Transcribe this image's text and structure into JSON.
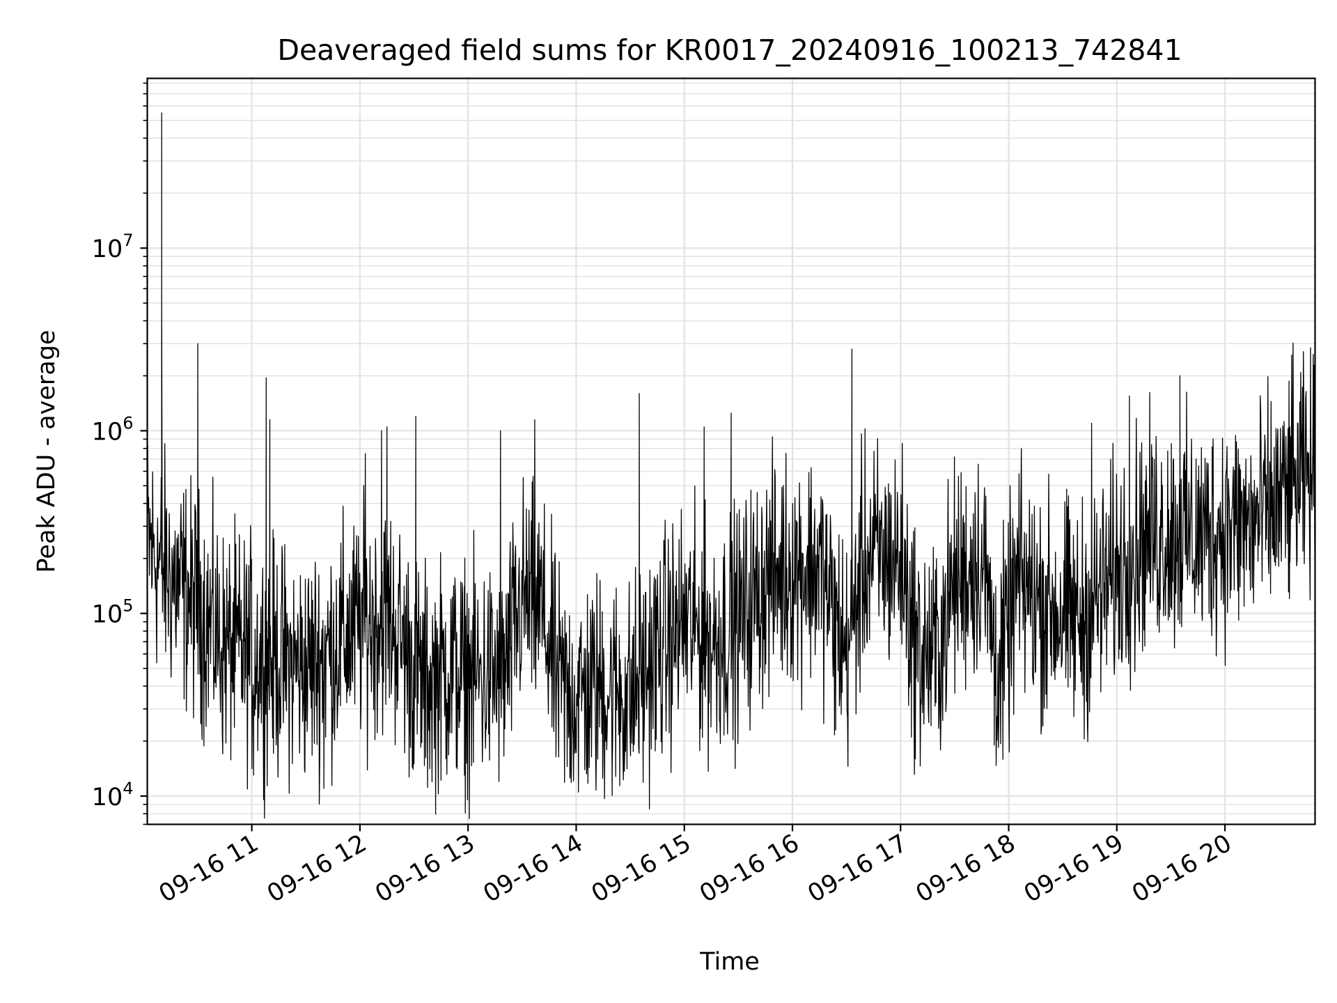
{
  "chart_data": {
    "type": "line",
    "title": "Deaveraged field sums for KR0017_20240916_100213_742841",
    "xlabel": "Time",
    "ylabel": "Peak ADU - average",
    "y_scale": "log",
    "ylim": [
      7000,
      85000000
    ],
    "xlim": [
      "2024-09-16 10:02",
      "2024-09-16 20:50"
    ],
    "grid": true,
    "line_color": "#000000",
    "grid_color": "#e3e3e3",
    "x_ticks": [
      {
        "label": "09-16 11",
        "time": "2024-09-16 11:00"
      },
      {
        "label": "09-16 12",
        "time": "2024-09-16 12:00"
      },
      {
        "label": "09-16 13",
        "time": "2024-09-16 13:00"
      },
      {
        "label": "09-16 14",
        "time": "2024-09-16 14:00"
      },
      {
        "label": "09-16 15",
        "time": "2024-09-16 15:00"
      },
      {
        "label": "09-16 16",
        "time": "2024-09-16 16:00"
      },
      {
        "label": "09-16 17",
        "time": "2024-09-16 17:00"
      },
      {
        "label": "09-16 18",
        "time": "2024-09-16 18:00"
      },
      {
        "label": "09-16 19",
        "time": "2024-09-16 19:00"
      },
      {
        "label": "09-16 20",
        "time": "2024-09-16 20:00"
      }
    ],
    "y_ticks": [
      {
        "base": "10",
        "exp": "4",
        "value": 10000
      },
      {
        "base": "10",
        "exp": "5",
        "value": 100000
      },
      {
        "base": "10",
        "exp": "6",
        "value": 1000000
      },
      {
        "base": "10",
        "exp": "7",
        "value": 10000000
      }
    ],
    "series": [
      {
        "trend": [
          [
            "2024-09-16 10:02",
            250000
          ],
          [
            "2024-09-16 10:10",
            180000
          ],
          [
            "2024-09-16 10:20",
            140000
          ],
          [
            "2024-09-16 10:30",
            110000
          ],
          [
            "2024-09-16 10:45",
            65000
          ],
          [
            "2024-09-16 11:00",
            60000
          ],
          [
            "2024-09-16 11:15",
            55000
          ],
          [
            "2024-09-16 11:30",
            50000
          ],
          [
            "2024-09-16 11:45",
            65000
          ],
          [
            "2024-09-16 12:00",
            85000
          ],
          [
            "2024-09-16 12:15",
            100000
          ],
          [
            "2024-09-16 12:25",
            65000
          ],
          [
            "2024-09-16 12:35",
            40000
          ],
          [
            "2024-09-16 12:50",
            50000
          ],
          [
            "2024-09-16 13:00",
            45000
          ],
          [
            "2024-09-16 13:20",
            45000
          ],
          [
            "2024-09-16 13:30",
            120000
          ],
          [
            "2024-09-16 13:40",
            110000
          ],
          [
            "2024-09-16 13:50",
            40000
          ],
          [
            "2024-09-16 14:00",
            35000
          ],
          [
            "2024-09-16 14:15",
            40000
          ],
          [
            "2024-09-16 14:30",
            35000
          ],
          [
            "2024-09-16 14:45",
            60000
          ],
          [
            "2024-09-16 15:00",
            90000
          ],
          [
            "2024-09-16 15:15",
            70000
          ],
          [
            "2024-09-16 15:30",
            90000
          ],
          [
            "2024-09-16 15:45",
            150000
          ],
          [
            "2024-09-16 16:00",
            180000
          ],
          [
            "2024-09-16 16:15",
            180000
          ],
          [
            "2024-09-16 16:30",
            60000
          ],
          [
            "2024-09-16 16:40",
            200000
          ],
          [
            "2024-09-16 17:00",
            200000
          ],
          [
            "2024-09-16 17:10",
            60000
          ],
          [
            "2024-09-16 17:20",
            60000
          ],
          [
            "2024-09-16 17:30",
            150000
          ],
          [
            "2024-09-16 17:45",
            200000
          ],
          [
            "2024-09-16 17:55",
            45000
          ],
          [
            "2024-09-16 18:05",
            150000
          ],
          [
            "2024-09-16 18:20",
            110000
          ],
          [
            "2024-09-16 18:40",
            90000
          ],
          [
            "2024-09-16 19:00",
            170000
          ],
          [
            "2024-09-16 19:15",
            260000
          ],
          [
            "2024-09-16 19:30",
            280000
          ],
          [
            "2024-09-16 19:45",
            260000
          ],
          [
            "2024-09-16 20:00",
            300000
          ],
          [
            "2024-09-16 20:15",
            300000
          ],
          [
            "2024-09-16 20:30",
            400000
          ],
          [
            "2024-09-16 20:45",
            550000
          ],
          [
            "2024-09-16 20:50",
            600000
          ]
        ],
        "spikes": [
          [
            "2024-09-16 10:10",
            55000000
          ],
          [
            "2024-09-16 10:10",
            5200000
          ],
          [
            "2024-09-16 10:30",
            3000000
          ],
          [
            "2024-09-16 11:08",
            1950000
          ],
          [
            "2024-09-16 11:10",
            1150000
          ],
          [
            "2024-09-16 12:03",
            750000
          ],
          [
            "2024-09-16 12:12",
            1000000
          ],
          [
            "2024-09-16 12:15",
            1050000
          ],
          [
            "2024-09-16 12:31",
            1200000
          ],
          [
            "2024-09-16 13:18",
            1000000
          ],
          [
            "2024-09-16 13:37",
            1150000
          ],
          [
            "2024-09-16 14:35",
            1600000
          ],
          [
            "2024-09-16 15:11",
            1050000
          ],
          [
            "2024-09-16 15:26",
            1250000
          ],
          [
            "2024-09-16 16:33",
            2800000
          ],
          [
            "2024-09-16 18:46",
            1100000
          ],
          [
            "2024-09-16 19:07",
            1550000
          ],
          [
            "2024-09-16 19:35",
            2000000
          ],
          [
            "2024-09-16 20:37",
            2600000
          ],
          [
            "2024-09-16 20:36",
            1050000
          ]
        ],
        "dips": [
          [
            "2024-09-16 11:01",
            13000
          ],
          [
            "2024-09-16 11:40",
            11000
          ],
          [
            "2024-09-16 12:30",
            15000
          ],
          [
            "2024-09-16 12:58",
            13000
          ],
          [
            "2024-09-16 13:55",
            14500
          ],
          [
            "2024-09-16 14:20",
            15000
          ],
          [
            "2024-09-16 16:24",
            23000
          ],
          [
            "2024-09-16 17:06",
            21000
          ],
          [
            "2024-09-16 17:52",
            19000
          ],
          [
            "2024-09-16 19:10",
            48000
          ]
        ]
      }
    ]
  }
}
